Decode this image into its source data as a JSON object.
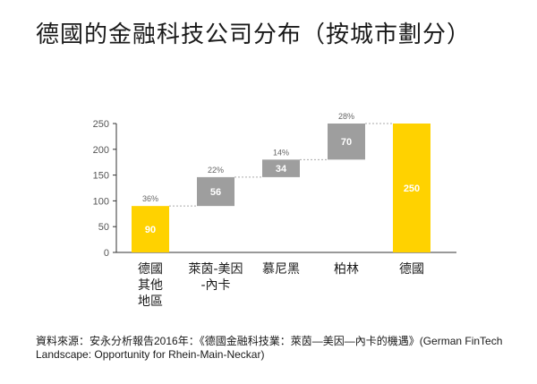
{
  "title": "德國的金融科技公司分布（按城市劃分）",
  "source": "資料來源：安永分析報告2016年：《德國金融科技業：萊茵—美因—內卡的機遇》(German FinTech Landscape: Opportunity for Rhein-Main-Neckar)",
  "colors": {
    "highlight": "#FFD200",
    "step": "#9E9E9E",
    "connector": "#AAAAAA",
    "axis": "#333333"
  },
  "chart_data": {
    "type": "bar",
    "subtype": "waterfall",
    "categories": [
      [
        "德國",
        "其他",
        "地區"
      ],
      [
        "萊茵-美因",
        "-內卡"
      ],
      [
        "慕尼黑"
      ],
      [
        "柏林"
      ],
      [
        "德國"
      ]
    ],
    "values": [
      90,
      56,
      34,
      70,
      250
    ],
    "bases": [
      0,
      90,
      146,
      180,
      0
    ],
    "percent_labels": [
      "36%",
      "22%",
      "14%",
      "28%",
      ""
    ],
    "value_labels": [
      "90",
      "56",
      "34",
      "70",
      "250"
    ],
    "highlighted": [
      true,
      false,
      false,
      false,
      true
    ],
    "ylim": [
      0,
      250
    ],
    "yticks": [
      0,
      50,
      100,
      150,
      200,
      250
    ],
    "grid": false,
    "xlabel": "",
    "ylabel": ""
  }
}
